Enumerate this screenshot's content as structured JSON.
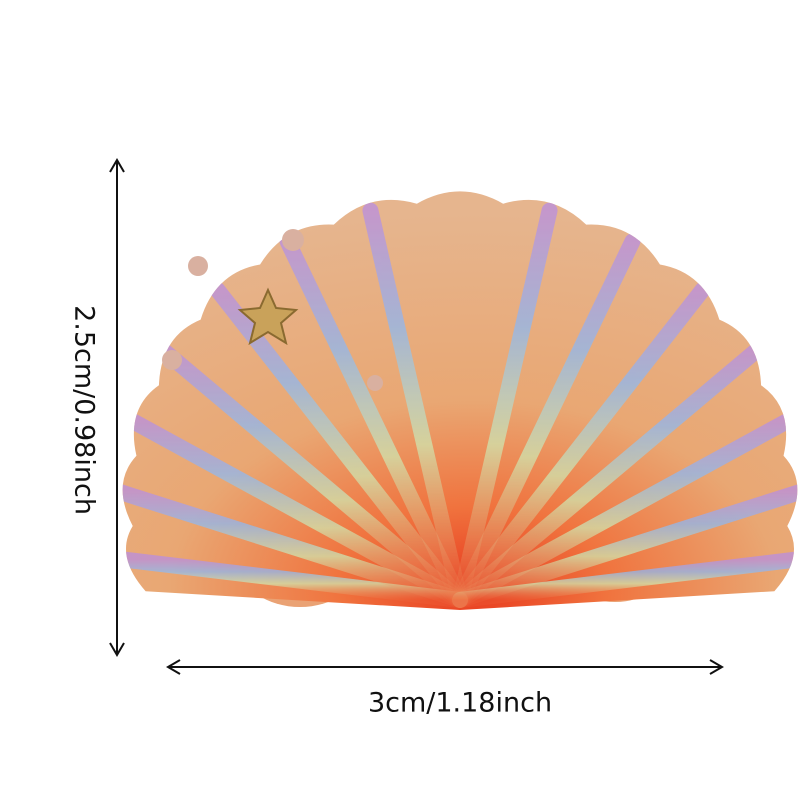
{
  "product": {
    "subject": "iridescent scallop seashell",
    "colors": {
      "base": "#e9a773",
      "center": "#e8391e",
      "sheen_blue": "#8fb8f0",
      "sheen_purple": "#b98ee0",
      "sheen_green": "#cfe6b0"
    }
  },
  "dimensions": {
    "height_label": "2.5cm/0.98inch",
    "width_label": "3cm/1.18inch",
    "arrow_color": "#111111"
  }
}
